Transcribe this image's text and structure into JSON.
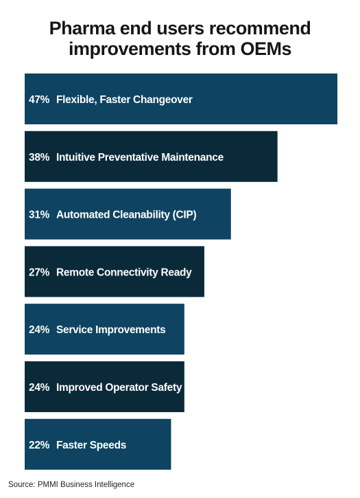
{
  "chart_data": {
    "type": "bar",
    "orientation": "horizontal",
    "title": "Pharma end users recommend improvements from OEMs",
    "title_lines": [
      "Pharma end users recommend",
      "improvements from OEMs"
    ],
    "categories": [
      "Flexible, Faster Changeover",
      "Intuitive Preventative Maintenance",
      "Automated Cleanability (CIP)",
      "Remote Connectivity Ready",
      "Service Improvements",
      "Improved Operator Safety",
      "Faster Speeds"
    ],
    "values": [
      47,
      38,
      31,
      27,
      24,
      24,
      22
    ],
    "value_labels": [
      "47%",
      "38%",
      "31%",
      "27%",
      "24%",
      "24%",
      "22%"
    ],
    "unit": "%",
    "xlim": [
      0,
      47
    ],
    "grid": false,
    "legend": "none",
    "colors": [
      "#0e4461",
      "#0a2a3a"
    ]
  },
  "source": "Source: PMMI Business Intelligence"
}
